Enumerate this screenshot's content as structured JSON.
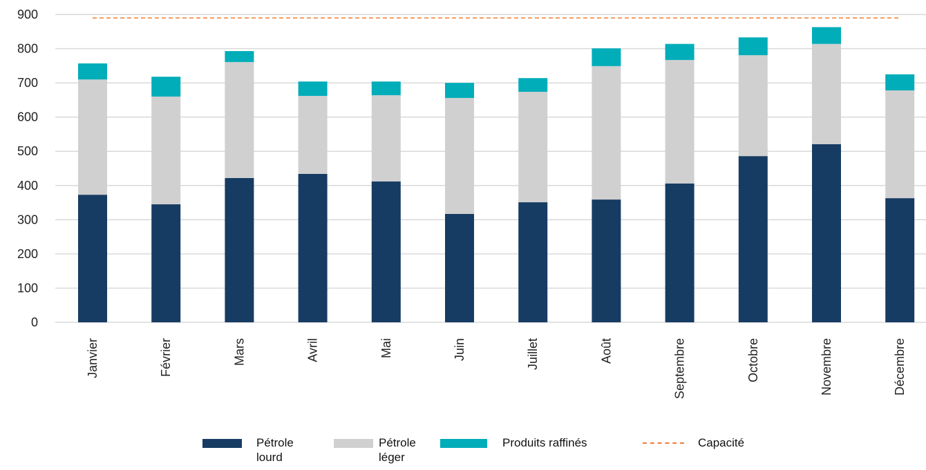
{
  "chart_data": {
    "type": "stacked_bar",
    "categories": [
      "Janvier",
      "Février",
      "Mars",
      "Avril",
      "Mai",
      "Juin",
      "Juillet",
      "Août",
      "Septembre",
      "Octobre",
      "Novembre",
      "Décembre"
    ],
    "series": [
      {
        "name": "Pétrole lourd",
        "color": "#173c63",
        "values": [
          373,
          345,
          422,
          434,
          412,
          317,
          351,
          359,
          406,
          486,
          521,
          363
        ]
      },
      {
        "name": "Pétrole léger",
        "color": "#d0d0d0",
        "values": [
          337,
          315,
          339,
          228,
          252,
          339,
          323,
          390,
          361,
          295,
          293,
          315
        ]
      },
      {
        "name": "Produits raffinés",
        "color": "#00adb9",
        "values": [
          47,
          58,
          32,
          42,
          40,
          44,
          40,
          52,
          47,
          52,
          49,
          47
        ]
      }
    ],
    "capacity": {
      "name": "Capacité",
      "value": 890,
      "color": "#ed7d31"
    },
    "ylim": [
      0,
      900
    ],
    "yticks": [
      0,
      100,
      200,
      300,
      400,
      500,
      600,
      700,
      800,
      900
    ],
    "grid": true
  }
}
